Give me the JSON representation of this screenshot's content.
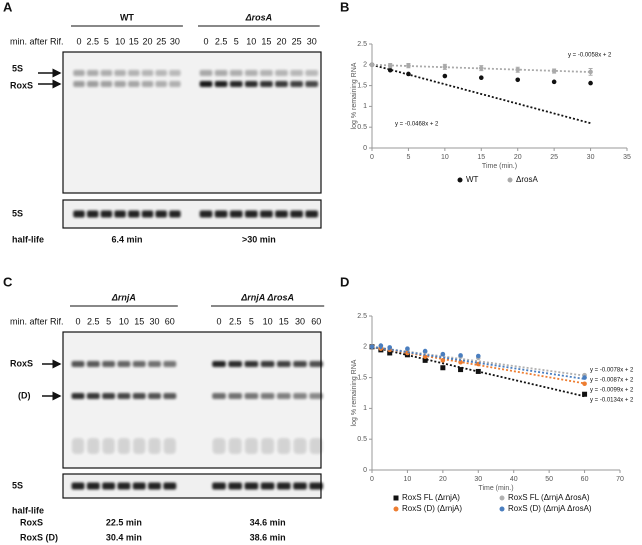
{
  "gels": [
    {
      "panel": "A",
      "lane_header": "min. after Rif.",
      "groups": [
        {
          "name": "WT",
          "lanes": [
            0,
            2.5,
            5,
            10,
            15,
            20,
            25,
            30
          ]
        },
        {
          "name": "ΔrosA",
          "lanes": [
            0,
            2.5,
            5,
            10,
            15,
            20,
            25,
            30
          ]
        }
      ],
      "band_labels": [
        "5S",
        "RoxS"
      ],
      "loading_label": "5S",
      "half_life": {
        "label": "half-life",
        "values": [
          "6.4 min",
          ">30 min"
        ]
      }
    },
    {
      "panel": "C",
      "lane_header": "min. after Rif.",
      "groups": [
        {
          "name": "ΔrnjA",
          "lanes": [
            0,
            2.5,
            5,
            10,
            15,
            30,
            60
          ]
        },
        {
          "name": "ΔrnjA ΔrosA",
          "lanes": [
            0,
            2.5,
            5,
            10,
            15,
            30,
            60
          ]
        }
      ],
      "band_labels": [
        "RoxS",
        "(D)"
      ],
      "loading_label": "5S",
      "half_life": {
        "label": "half-life",
        "rows": [
          {
            "name": "RoxS",
            "values": [
              "22.5 min",
              "34.6 min"
            ]
          },
          {
            "name": "RoxS (D)",
            "values": [
              "30.4 min",
              "38.6 min"
            ]
          }
        ]
      }
    }
  ],
  "chart_data": [
    {
      "panel": "B",
      "type": "scatter",
      "x_label": "Time (min.)",
      "y_label": "log % remaining RNA",
      "x": [
        0,
        2.5,
        5,
        10,
        15,
        20,
        25,
        30
      ],
      "xlim": [
        0,
        35
      ],
      "xticks": [
        0,
        5,
        10,
        15,
        20,
        25,
        30,
        35
      ],
      "ylim": [
        0,
        2.5
      ],
      "yticks": [
        0,
        0.5,
        1,
        1.5,
        2,
        2.5
      ],
      "grid": false,
      "series": [
        {
          "name": "WT",
          "color": "#111111",
          "marker": "circle",
          "values": [
            2,
            1.87,
            1.78,
            1.73,
            1.69,
            1.64,
            1.59,
            1.56
          ],
          "trend": {
            "slope": -0.0468,
            "intercept": 2,
            "label": "y = -0.0468x + 2"
          }
        },
        {
          "name": "ΔrosA",
          "color": "#aaaaaa",
          "marker": "circle",
          "values": [
            2,
            1.98,
            1.98,
            1.95,
            1.92,
            1.88,
            1.85,
            1.83
          ],
          "errors": [
            0.02,
            0.05,
            0.05,
            0.06,
            0.06,
            0.06,
            0.05,
            0.08
          ],
          "trend": {
            "slope": -0.0058,
            "intercept": 2,
            "label": "y = -0.0058x + 2"
          }
        }
      ]
    },
    {
      "panel": "D",
      "type": "scatter",
      "x_label": "Time (min.)",
      "y_label": "log % remaining RNA",
      "x": [
        0,
        2.5,
        5,
        10,
        15,
        20,
        25,
        30,
        60
      ],
      "xlim": [
        0,
        70
      ],
      "xticks": [
        0,
        10,
        20,
        30,
        40,
        50,
        60,
        70
      ],
      "ylim": [
        0,
        2.5
      ],
      "yticks": [
        0,
        0.5,
        1,
        1.5,
        2,
        2.5
      ],
      "grid": false,
      "series": [
        {
          "name": "RoxS FL (ΔrnjA)",
          "color": "#111111",
          "marker": "square",
          "values": [
            2,
            1.95,
            1.9,
            1.87,
            1.78,
            1.66,
            1.63,
            1.6,
            1.23
          ],
          "trend": {
            "slope": -0.0134,
            "intercept": 2,
            "label": "y = -0.0134x + 2"
          }
        },
        {
          "name": "RoxS FL (ΔrnjA ΔrosA)",
          "color": "#b0b0b0",
          "marker": "circle",
          "values": [
            2,
            2,
            1.98,
            1.95,
            1.92,
            1.88,
            1.84,
            1.82,
            1.54
          ],
          "trend": {
            "slope": -0.0078,
            "intercept": 2,
            "label": "y = -0.0078x + 2"
          }
        },
        {
          "name": "RoxS (D) (ΔrnjA)",
          "color": "#ed7d31",
          "marker": "circle",
          "values": [
            2,
            1.97,
            1.95,
            1.9,
            1.84,
            1.78,
            1.75,
            1.72,
            1.4
          ],
          "trend": {
            "slope": -0.0099,
            "intercept": 2,
            "label": "y = -0.0099x + 2"
          }
        },
        {
          "name": "RoxS (D) (ΔrnjA ΔrosA)",
          "color": "#4a7ebf",
          "marker": "circle",
          "values": [
            2,
            2.02,
            1.99,
            1.97,
            1.93,
            1.88,
            1.86,
            1.85,
            1.5
          ],
          "trend": {
            "slope": -0.0087,
            "intercept": 2,
            "label": "y = -0.0087x + 2"
          }
        }
      ]
    }
  ]
}
